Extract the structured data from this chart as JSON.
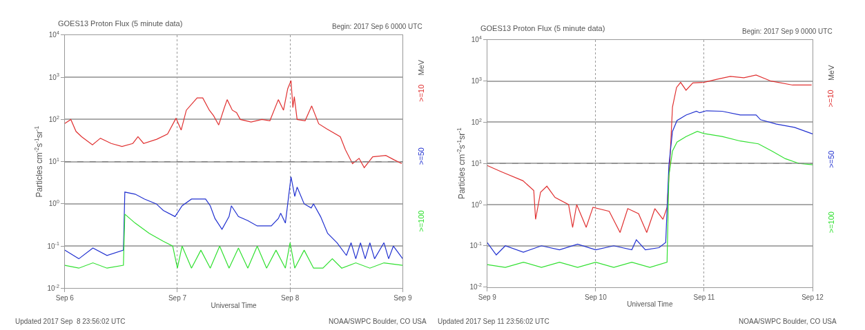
{
  "chart_data": [
    {
      "type": "line",
      "title": "GOES13 Proton Flux (5 minute data)",
      "subtitle": "Begin: 2017 Sep 6 0000 UTC",
      "xlabel": "Universal Time",
      "ylabel": "Particles cm$^{-2}$s$^{-1}$sr$^{-1}$",
      "annotations": [
        "MeV",
        "Updated 2017 Sep  8 23:56:02 UTC",
        "NOAA/SWPC Boulder, CO USA"
      ],
      "log": true,
      "grid": true,
      "legend": false,
      "marker": "none",
      "line_style": "solid",
      "xlim": [
        "2017-09-06T00:00",
        "2017-09-09T00:00"
      ],
      "xticks": [
        {
          "value": "2017-09-06",
          "label": "Sep 6"
        },
        {
          "value": "2017-09-07",
          "label": "Sep 7"
        },
        {
          "value": "2017-09-08",
          "label": "Sep 8"
        },
        {
          "value": "2017-09-09",
          "label": "Sep 9"
        }
      ],
      "ylim": [
        0.01,
        10000
      ],
      "yticks": [
        {
          "value": 0.01,
          "label": "10$^{-2}$"
        },
        {
          "value": 0.1,
          "label": "10$^{-1}$"
        },
        {
          "value": 1,
          "label": "10$^{0}$"
        },
        {
          "value": 10,
          "label": "10$^{1}$"
        },
        {
          "value": 100,
          "label": "10$^{2}$"
        },
        {
          "value": 1000,
          "label": "10$^{3}$"
        },
        {
          "value": 10000,
          "label": "10$^{4}$"
        }
      ],
      "ref_lines": [
        {
          "axis": "y",
          "value": 10,
          "color": "#808080",
          "line_style": "dashed"
        }
      ],
      "series": [
        {
          "name": ">=10",
          "color": "#e03030",
          "x": [
            "2017-09-06T00:00",
            "2017-09-06T01:18",
            "2017-09-06T02:24",
            "2017-09-06T03:36",
            "2017-09-06T05:54",
            "2017-09-06T07:36",
            "2017-09-06T09:54",
            "2017-09-06T12:12",
            "2017-09-06T14:30",
            "2017-09-06T15:36",
            "2017-09-06T16:48",
            "2017-09-06T19:36",
            "2017-09-06T21:54",
            "2017-09-06T23:42",
            "2017-09-07T00:48",
            "2017-09-07T01:54",
            "2017-09-07T04:12",
            "2017-09-07T05:24",
            "2017-09-07T06:48",
            "2017-09-07T07:42",
            "2017-09-07T08:48",
            "2017-09-07T10:00",
            "2017-09-07T10:36",
            "2017-09-07T11:42",
            "2017-09-07T12:36",
            "2017-09-07T13:24",
            "2017-09-07T15:42",
            "2017-09-07T18:00",
            "2017-09-07T19:42",
            "2017-09-07T21:30",
            "2017-09-07T22:36",
            "2017-09-07T23:30",
            "2017-09-08T00:12",
            "2017-09-08T00:36",
            "2017-09-08T00:54",
            "2017-09-08T01:30",
            "2017-09-08T03:12",
            "2017-09-08T04:36",
            "2017-09-08T06:06",
            "2017-09-08T07:48",
            "2017-09-08T10:42",
            "2017-09-08T11:48",
            "2017-09-08T13:18",
            "2017-09-08T14:42",
            "2017-09-08T15:48",
            "2017-09-08T17:36",
            "2017-09-08T20:24",
            "2017-09-08T22:12",
            "2017-09-08T23:48"
          ],
          "values": [
            80,
            100,
            52,
            39,
            25,
            36,
            27,
            23,
            27,
            39,
            27,
            34,
            45,
            107,
            56,
            166,
            324,
            324,
            166,
            123,
            74,
            191,
            295,
            166,
            145,
            100,
            87,
            100,
            93,
            295,
            166,
            537,
            832,
            191,
            347,
            100,
            93,
            209,
            79,
            60,
            39,
            19,
            9,
            12,
            7.2,
            13,
            14,
            11,
            9
          ]
        },
        {
          "name": ">=50",
          "color": "#2030d0",
          "x": [
            "2017-09-06T00:00",
            "2017-09-06T03:00",
            "2017-09-06T06:00",
            "2017-09-06T09:00",
            "2017-09-06T12:30",
            "2017-09-06T12:48",
            "2017-09-06T15:00",
            "2017-09-06T17:00",
            "2017-09-06T19:30",
            "2017-09-06T21:00",
            "2017-09-06T23:30",
            "2017-09-07T01:00",
            "2017-09-07T03:00",
            "2017-09-07T06:00",
            "2017-09-07T07:00",
            "2017-09-07T08:00",
            "2017-09-07T09:30",
            "2017-09-07T11:00",
            "2017-09-07T11:30",
            "2017-09-07T13:00",
            "2017-09-07T15:00",
            "2017-09-07T17:00",
            "2017-09-07T20:00",
            "2017-09-07T21:30",
            "2017-09-07T22:00",
            "2017-09-07T23:00",
            "2017-09-07T23:30",
            "2017-09-08T00:12",
            "2017-09-08T01:00",
            "2017-09-08T01:30",
            "2017-09-08T03:00",
            "2017-09-08T04:30",
            "2017-09-08T05:00",
            "2017-09-08T06:30",
            "2017-09-08T08:00",
            "2017-09-08T10:00",
            "2017-09-08T12:00",
            "2017-09-08T13:00",
            "2017-09-08T14:00",
            "2017-09-08T15:00",
            "2017-09-08T16:00",
            "2017-09-08T17:00",
            "2017-09-08T18:00",
            "2017-09-08T20:00",
            "2017-09-08T21:00",
            "2017-09-08T22:00",
            "2017-09-09T00:00"
          ],
          "values": [
            0.08,
            0.05,
            0.09,
            0.06,
            0.08,
            1.9,
            1.7,
            1.3,
            1.0,
            0.7,
            0.5,
            0.9,
            1.3,
            1.3,
            0.9,
            0.45,
            0.25,
            0.5,
            0.9,
            0.5,
            0.4,
            0.3,
            0.3,
            0.45,
            0.6,
            0.35,
            1.0,
            4.4,
            1.5,
            2.5,
            1.0,
            0.8,
            1.0,
            0.5,
            0.2,
            0.12,
            0.06,
            0.12,
            0.05,
            0.12,
            0.05,
            0.12,
            0.05,
            0.12,
            0.05,
            0.1,
            0.05
          ]
        },
        {
          "name": ">=100",
          "color": "#30e030",
          "x": [
            "2017-09-06T00:00",
            "2017-09-06T03:00",
            "2017-09-06T06:00",
            "2017-09-06T09:00",
            "2017-09-06T12:30",
            "2017-09-06T12:48",
            "2017-09-06T15:00",
            "2017-09-06T18:00",
            "2017-09-06T21:00",
            "2017-09-06T23:00",
            "2017-09-07T00:00",
            "2017-09-07T01:00",
            "2017-09-07T03:00",
            "2017-09-07T05:00",
            "2017-09-07T07:00",
            "2017-09-07T09:00",
            "2017-09-07T11:00",
            "2017-09-07T13:00",
            "2017-09-07T15:00",
            "2017-09-07T17:00",
            "2017-09-07T19:00",
            "2017-09-07T21:00",
            "2017-09-07T23:00",
            "2017-09-08T00:00",
            "2017-09-08T01:00",
            "2017-09-08T03:00",
            "2017-09-08T05:00",
            "2017-09-08T07:00",
            "2017-09-08T09:00",
            "2017-09-08T11:00",
            "2017-09-08T14:00",
            "2017-09-08T17:00",
            "2017-09-08T20:00",
            "2017-09-09T00:00"
          ],
          "values": [
            0.035,
            0.03,
            0.04,
            0.03,
            0.035,
            0.57,
            0.35,
            0.2,
            0.13,
            0.1,
            0.03,
            0.1,
            0.03,
            0.08,
            0.03,
            0.1,
            0.03,
            0.09,
            0.03,
            0.1,
            0.03,
            0.08,
            0.03,
            0.12,
            0.03,
            0.08,
            0.03,
            0.03,
            0.05,
            0.03,
            0.04,
            0.03,
            0.04,
            0.035
          ]
        }
      ]
    },
    {
      "type": "line",
      "title": "GOES13 Proton Flux (5 minute data)",
      "subtitle": "Begin: 2017 Sep 9 0000 UTC",
      "xlabel": "Universal Time",
      "ylabel": "Particles cm$^{-2}$s$^{-1}$sr$^{-1}$",
      "annotations": [
        "MeV",
        "Updated 2017 Sep 11 23:56:02 UTC",
        "NOAA/SWPC Boulder, CO USA"
      ],
      "log": true,
      "grid": true,
      "legend": false,
      "marker": "none",
      "line_style": "solid",
      "xlim": [
        "2017-09-09T00:00",
        "2017-09-12T00:00"
      ],
      "xticks": [
        {
          "value": "2017-09-09",
          "label": "Sep 9"
        },
        {
          "value": "2017-09-10",
          "label": "Sep 10"
        },
        {
          "value": "2017-09-11",
          "label": "Sep 11"
        },
        {
          "value": "2017-09-12",
          "label": "Sep 12"
        }
      ],
      "ylim": [
        0.01,
        10000
      ],
      "yticks": [
        {
          "value": 0.01,
          "label": "10$^{-2}$"
        },
        {
          "value": 0.1,
          "label": "10$^{-1}$"
        },
        {
          "value": 1,
          "label": "10$^{0}$"
        },
        {
          "value": 10,
          "label": "10$^{1}$"
        },
        {
          "value": 100,
          "label": "10$^{2}$"
        },
        {
          "value": 1000,
          "label": "10$^{3}$"
        },
        {
          "value": 10000,
          "label": "10$^{4}$"
        }
      ],
      "ref_lines": [
        {
          "axis": "y",
          "value": 10,
          "color": "#808080",
          "line_style": "dashed"
        }
      ],
      "series": [
        {
          "name": ">=10",
          "color": "#e03030",
          "x": [
            "2017-09-09T00:00",
            "2017-09-09T03:06",
            "2017-09-09T07:54",
            "2017-09-09T10:18",
            "2017-09-09T10:42",
            "2017-09-09T11:48",
            "2017-09-09T13:12",
            "2017-09-09T15:00",
            "2017-09-09T18:00",
            "2017-09-09T18:54",
            "2017-09-09T19:48",
            "2017-09-09T21:54",
            "2017-09-09T23:24",
            "2017-09-10T03:00",
            "2017-09-10T05:24",
            "2017-09-10T07:06",
            "2017-09-10T09:30",
            "2017-09-10T11:18",
            "2017-09-10T13:06",
            "2017-09-10T14:54",
            "2017-09-10T15:48",
            "2017-09-10T16:24",
            "2017-09-10T17:00",
            "2017-09-10T17:54",
            "2017-09-10T18:48",
            "2017-09-10T20:00",
            "2017-09-10T21:30",
            "2017-09-10T23:54",
            "2017-09-11T02:48",
            "2017-09-11T05:48",
            "2017-09-11T08:48",
            "2017-09-11T11:30",
            "2017-09-11T14:48",
            "2017-09-11T19:36",
            "2017-09-11T23:48"
          ],
          "values": [
            8.9,
            6.3,
            3.8,
            2.2,
            0.44,
            2.0,
            2.8,
            1.5,
            1.0,
            0.28,
            1.0,
            0.28,
            0.86,
            0.69,
            0.21,
            0.8,
            0.6,
            0.21,
            0.8,
            0.44,
            0.86,
            10,
            235,
            700,
            930,
            600,
            900,
            930,
            1100,
            1300,
            1200,
            1400,
            1000,
            800,
            800
          ]
        },
        {
          "name": ">=50",
          "color": "#2030d0",
          "x": [
            "2017-09-09T00:00",
            "2017-09-09T02:00",
            "2017-09-09T04:00",
            "2017-09-09T08:00",
            "2017-09-09T12:00",
            "2017-09-09T16:00",
            "2017-09-09T20:00",
            "2017-09-10T00:00",
            "2017-09-10T04:00",
            "2017-09-10T08:00",
            "2017-09-10T09:00",
            "2017-09-10T11:00",
            "2017-09-10T14:00",
            "2017-09-10T15:30",
            "2017-09-10T16:12",
            "2017-09-10T17:00",
            "2017-09-10T18:00",
            "2017-09-10T20:00",
            "2017-09-10T22:18",
            "2017-09-10T23:00",
            "2017-09-11T00:30",
            "2017-09-11T04:00",
            "2017-09-11T08:00",
            "2017-09-11T11:30",
            "2017-09-11T12:30",
            "2017-09-11T16:00",
            "2017-09-11T20:00",
            "2017-09-12T00:00"
          ],
          "values": [
            0.12,
            0.06,
            0.1,
            0.07,
            0.1,
            0.08,
            0.11,
            0.08,
            0.1,
            0.08,
            0.14,
            0.08,
            0.09,
            0.12,
            9,
            60,
            110,
            150,
            185,
            170,
            190,
            185,
            150,
            150,
            115,
            90,
            75,
            52
          ]
        },
        {
          "name": ">=100",
          "color": "#30e030",
          "x": [
            "2017-09-09T00:00",
            "2017-09-09T04:00",
            "2017-09-09T08:00",
            "2017-09-09T12:00",
            "2017-09-09T16:00",
            "2017-09-09T20:00",
            "2017-09-10T00:00",
            "2017-09-10T04:00",
            "2017-09-10T08:00",
            "2017-09-10T12:00",
            "2017-09-10T15:48",
            "2017-09-10T16:12",
            "2017-09-10T17:00",
            "2017-09-10T18:00",
            "2017-09-10T20:00",
            "2017-09-10T22:30",
            "2017-09-11T00:00",
            "2017-09-11T04:00",
            "2017-09-11T08:00",
            "2017-09-11T12:00",
            "2017-09-11T15:00",
            "2017-09-11T18:00",
            "2017-09-11T21:00",
            "2017-09-12T00:00"
          ],
          "values": [
            0.035,
            0.03,
            0.04,
            0.03,
            0.04,
            0.03,
            0.04,
            0.03,
            0.04,
            0.03,
            0.04,
            5,
            20,
            33,
            45,
            60,
            53,
            45,
            35,
            30,
            20,
            13,
            10,
            9.3
          ]
        }
      ]
    }
  ]
}
